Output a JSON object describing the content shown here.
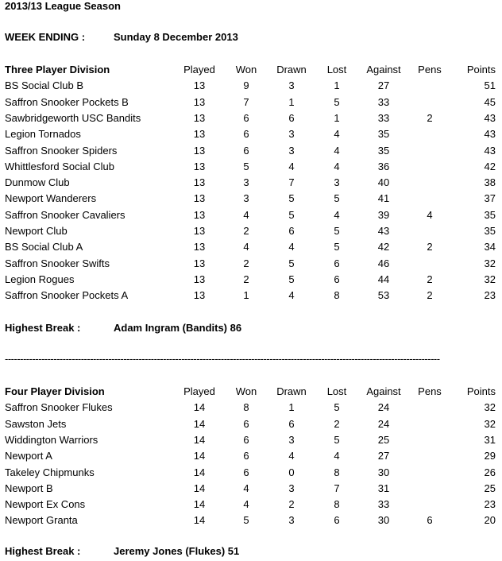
{
  "title": "2013/13 League Season",
  "week_ending": {
    "label": "WEEK ENDING :",
    "value": "Sunday 8 December 2013"
  },
  "columns": [
    "Played",
    "Won",
    "Drawn",
    "Lost",
    "Against",
    "Pens",
    "Points"
  ],
  "divisions": [
    {
      "name": "Three Player Division",
      "rows": [
        [
          "BS Social Club B",
          "13",
          "9",
          "3",
          "1",
          "27",
          "",
          "51"
        ],
        [
          "Saffron Snooker Pockets B",
          "13",
          "7",
          "1",
          "5",
          "33",
          "",
          "45"
        ],
        [
          "Sawbridgeworth USC Bandits",
          "13",
          "6",
          "6",
          "1",
          "33",
          "2",
          "43"
        ],
        [
          "Legion Tornados",
          "13",
          "6",
          "3",
          "4",
          "35",
          "",
          "43"
        ],
        [
          "Saffron Snooker Spiders",
          "13",
          "6",
          "3",
          "4",
          "35",
          "",
          "43"
        ],
        [
          "Whittlesford Social Club",
          "13",
          "5",
          "4",
          "4",
          "36",
          "",
          "42"
        ],
        [
          "Dunmow Club",
          "13",
          "3",
          "7",
          "3",
          "40",
          "",
          "38"
        ],
        [
          "Newport Wanderers",
          "13",
          "3",
          "5",
          "5",
          "41",
          "",
          "37"
        ],
        [
          "Saffron Snooker Cavaliers",
          "13",
          "4",
          "5",
          "4",
          "39",
          "4",
          "35"
        ],
        [
          "Newport Club",
          "13",
          "2",
          "6",
          "5",
          "43",
          "",
          "35"
        ],
        [
          "BS Social Club A",
          "13",
          "4",
          "4",
          "5",
          "42",
          "2",
          "34"
        ],
        [
          "Saffron Snooker Swifts",
          "13",
          "2",
          "5",
          "6",
          "46",
          "",
          "32"
        ],
        [
          "Legion Rogues",
          "13",
          "2",
          "5",
          "6",
          "44",
          "2",
          "32"
        ],
        [
          "Saffron Snooker Pockets A",
          "13",
          "1",
          "4",
          "8",
          "53",
          "2",
          "23"
        ]
      ],
      "highest_break": {
        "label": "Highest Break :",
        "value": "Adam Ingram (Bandits) 86"
      }
    },
    {
      "name": "Four Player Division",
      "rows": [
        [
          "Saffron Snooker Flukes",
          "14",
          "8",
          "1",
          "5",
          "24",
          "",
          "32"
        ],
        [
          "Sawston Jets",
          "14",
          "6",
          "6",
          "2",
          "24",
          "",
          "32"
        ],
        [
          "Widdington Warriors",
          "14",
          "6",
          "3",
          "5",
          "25",
          "",
          "31"
        ],
        [
          "Newport A",
          "14",
          "6",
          "4",
          "4",
          "27",
          "",
          "29"
        ],
        [
          "Takeley Chipmunks",
          "14",
          "6",
          "0",
          "8",
          "30",
          "",
          "26"
        ],
        [
          "Newport B",
          "14",
          "4",
          "3",
          "7",
          "31",
          "",
          "25"
        ],
        [
          "Newport Ex Cons",
          "14",
          "4",
          "2",
          "8",
          "33",
          "",
          "23"
        ],
        [
          "Newport Granta",
          "14",
          "5",
          "3",
          "6",
          "30",
          "6",
          "20"
        ]
      ],
      "highest_break": {
        "label": "Highest Break :",
        "value": "Jeremy Jones (Flukes) 51"
      }
    }
  ],
  "separator": "-----------------------------------------------------------------------------------------------------------------------------------------------"
}
